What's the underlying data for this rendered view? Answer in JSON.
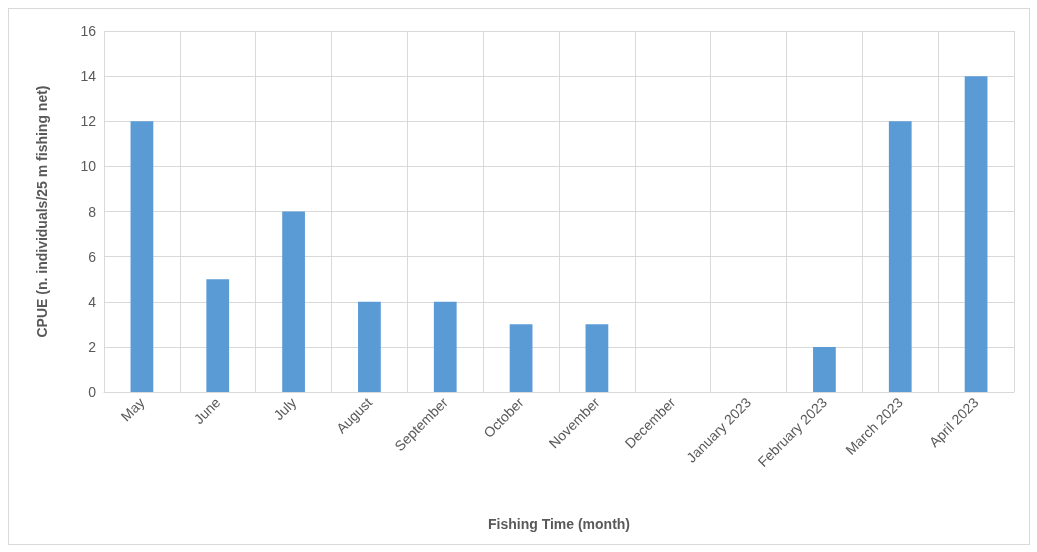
{
  "chart_data": {
    "type": "bar",
    "xlabel": "Fishing Time (month)",
    "ylabel": "CPUE (n. individuals/25 m fishing net)",
    "categories": [
      "May",
      "June",
      "July",
      "August",
      "September",
      "October",
      "November",
      "December",
      "January 2023",
      "February 2023",
      "March 2023",
      "April 2023"
    ],
    "values": [
      12,
      5,
      8,
      4,
      4,
      3,
      3,
      0,
      0,
      2,
      12,
      14
    ],
    "color": "#5b9bd5",
    "ylim": [
      0,
      16
    ],
    "yticks": [
      0,
      2,
      4,
      6,
      8,
      10,
      12,
      14,
      16
    ],
    "grid": true
  }
}
